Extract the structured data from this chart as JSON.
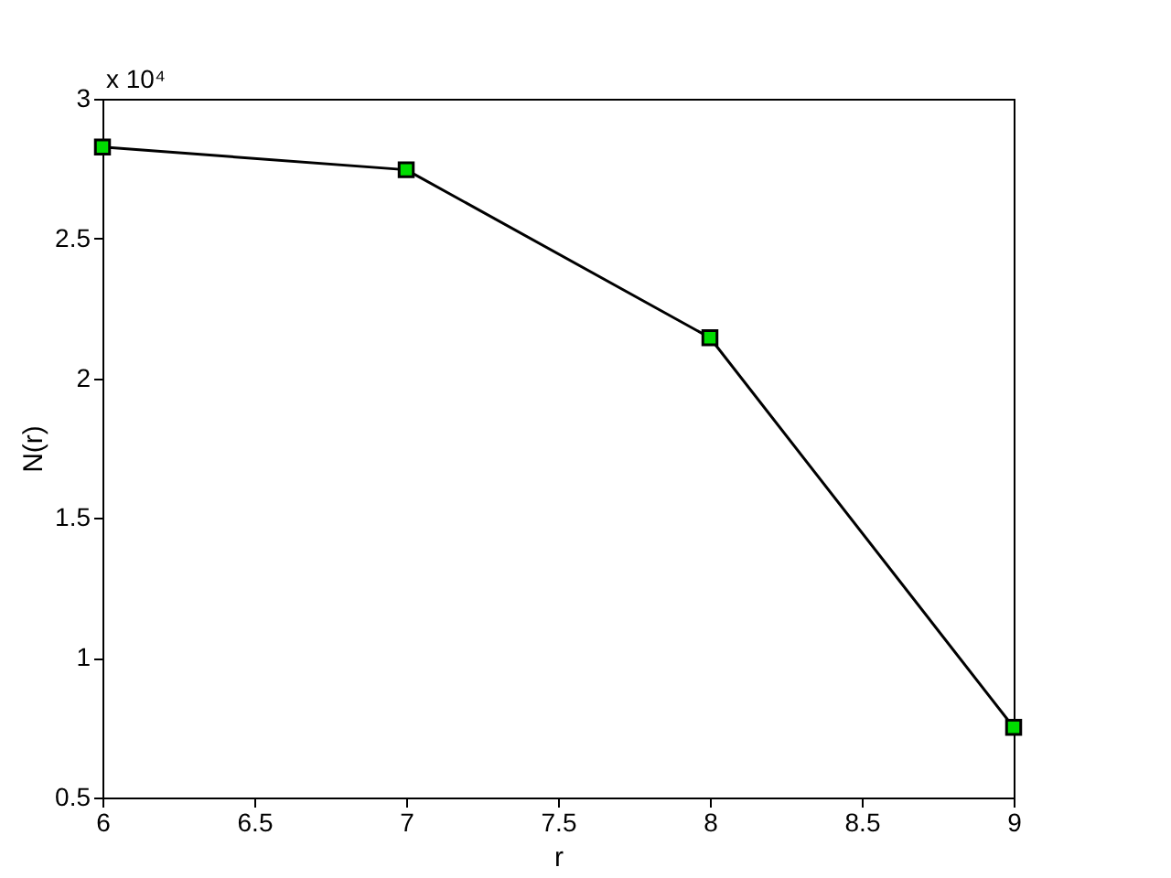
{
  "chart_data": {
    "type": "line",
    "xlabel": "r",
    "ylabel": "N(r)",
    "annotations": [
      "x 10⁴"
    ],
    "x": [
      6,
      7,
      8,
      9
    ],
    "series": [
      {
        "color": "#000000",
        "colors": [
          "#00dd00",
          "#00dd00",
          "#00dd00",
          "#00dd00"
        ],
        "values": [
          2.827,
          2.746,
          2.145,
          0.751
        ]
      }
    ],
    "xlim": [
      6,
      9
    ],
    "xticks": [
      6,
      6.5,
      7,
      7.5,
      8,
      8.5,
      9
    ],
    "ylim": [
      0.5,
      3
    ],
    "yticks": [
      0.5,
      1,
      1.5,
      2,
      2.5,
      3
    ],
    "marker": "square",
    "line_style": "solid",
    "grid": false
  }
}
